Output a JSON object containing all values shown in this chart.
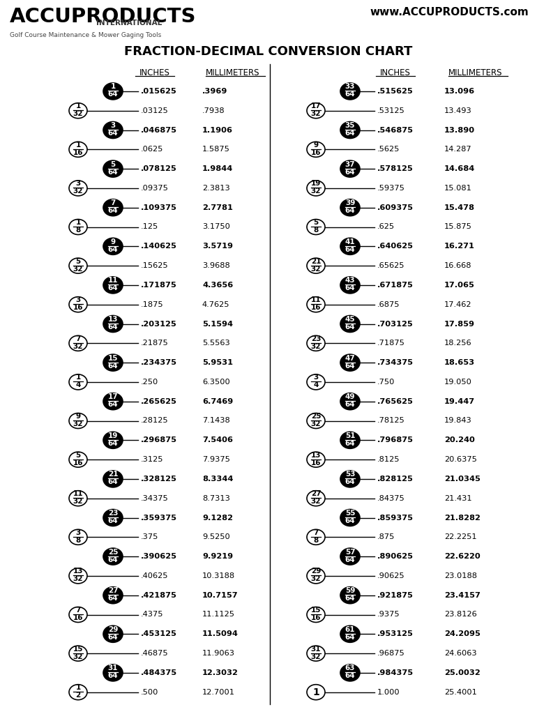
{
  "title": "FRACTION-DECIMAL CONVERSION CHART",
  "logo_main": "ACCUPRODUCTS",
  "logo_sub": "INTERNATIONAL",
  "logo_tagline": "Golf Course Maintenance & Mower Gaging Tools",
  "website": "www.ACCUPRODUCTS.com",
  "left_col": [
    {
      "frac": "1/64",
      "black": true,
      "inches": ".015625",
      "mm": ".3969"
    },
    {
      "frac": "1/32",
      "black": false,
      "inches": ".03125",
      "mm": ".7938"
    },
    {
      "frac": "3/64",
      "black": true,
      "inches": ".046875",
      "mm": "1.1906"
    },
    {
      "frac": "1/16",
      "black": false,
      "inches": ".0625",
      "mm": "1.5875"
    },
    {
      "frac": "5/64",
      "black": true,
      "inches": ".078125",
      "mm": "1.9844"
    },
    {
      "frac": "3/32",
      "black": false,
      "inches": ".09375",
      "mm": "2.3813"
    },
    {
      "frac": "7/64",
      "black": true,
      "inches": ".109375",
      "mm": "2.7781"
    },
    {
      "frac": "1/8",
      "black": false,
      "inches": ".125",
      "mm": "3.1750"
    },
    {
      "frac": "9/64",
      "black": true,
      "inches": ".140625",
      "mm": "3.5719"
    },
    {
      "frac": "5/32",
      "black": false,
      "inches": ".15625",
      "mm": "3.9688"
    },
    {
      "frac": "11/64",
      "black": true,
      "inches": ".171875",
      "mm": "4.3656"
    },
    {
      "frac": "3/16",
      "black": false,
      "inches": ".1875",
      "mm": "4.7625"
    },
    {
      "frac": "13/64",
      "black": true,
      "inches": ".203125",
      "mm": "5.1594"
    },
    {
      "frac": "7/32",
      "black": false,
      "inches": ".21875",
      "mm": "5.5563"
    },
    {
      "frac": "15/64",
      "black": true,
      "inches": ".234375",
      "mm": "5.9531"
    },
    {
      "frac": "1/4",
      "black": false,
      "inches": ".250",
      "mm": "6.3500"
    },
    {
      "frac": "17/64",
      "black": true,
      "inches": ".265625",
      "mm": "6.7469"
    },
    {
      "frac": "9/32",
      "black": false,
      "inches": ".28125",
      "mm": "7.1438"
    },
    {
      "frac": "19/64",
      "black": true,
      "inches": ".296875",
      "mm": "7.5406"
    },
    {
      "frac": "5/16",
      "black": false,
      "inches": ".3125",
      "mm": "7.9375"
    },
    {
      "frac": "21/64",
      "black": true,
      "inches": ".328125",
      "mm": "8.3344"
    },
    {
      "frac": "11/32",
      "black": false,
      "inches": ".34375",
      "mm": "8.7313"
    },
    {
      "frac": "23/64",
      "black": true,
      "inches": ".359375",
      "mm": "9.1282"
    },
    {
      "frac": "3/8",
      "black": false,
      "inches": ".375",
      "mm": "9.5250"
    },
    {
      "frac": "25/64",
      "black": true,
      "inches": ".390625",
      "mm": "9.9219"
    },
    {
      "frac": "13/32",
      "black": false,
      "inches": ".40625",
      "mm": "10.3188"
    },
    {
      "frac": "27/64",
      "black": true,
      "inches": ".421875",
      "mm": "10.7157"
    },
    {
      "frac": "7/16",
      "black": false,
      "inches": ".4375",
      "mm": "11.1125"
    },
    {
      "frac": "29/64",
      "black": true,
      "inches": ".453125",
      "mm": "11.5094"
    },
    {
      "frac": "15/32",
      "black": false,
      "inches": ".46875",
      "mm": "11.9063"
    },
    {
      "frac": "31/64",
      "black": true,
      "inches": ".484375",
      "mm": "12.3032"
    },
    {
      "frac": "1/2",
      "black": false,
      "inches": ".500",
      "mm": "12.7001"
    }
  ],
  "right_col": [
    {
      "frac": "33/64",
      "black": true,
      "inches": ".515625",
      "mm": "13.096"
    },
    {
      "frac": "17/32",
      "black": false,
      "inches": ".53125",
      "mm": "13.493"
    },
    {
      "frac": "35/64",
      "black": true,
      "inches": ".546875",
      "mm": "13.890"
    },
    {
      "frac": "9/16",
      "black": false,
      "inches": ".5625",
      "mm": "14.287"
    },
    {
      "frac": "37/64",
      "black": true,
      "inches": ".578125",
      "mm": "14.684"
    },
    {
      "frac": "19/32",
      "black": false,
      "inches": ".59375",
      "mm": "15.081"
    },
    {
      "frac": "39/64",
      "black": true,
      "inches": ".609375",
      "mm": "15.478"
    },
    {
      "frac": "5/8",
      "black": false,
      "inches": ".625",
      "mm": "15.875"
    },
    {
      "frac": "41/64",
      "black": true,
      "inches": ".640625",
      "mm": "16.271"
    },
    {
      "frac": "21/32",
      "black": false,
      "inches": ".65625",
      "mm": "16.668"
    },
    {
      "frac": "43/64",
      "black": true,
      "inches": ".671875",
      "mm": "17.065"
    },
    {
      "frac": "11/16",
      "black": false,
      "inches": ".6875",
      "mm": "17.462"
    },
    {
      "frac": "45/64",
      "black": true,
      "inches": ".703125",
      "mm": "17.859"
    },
    {
      "frac": "23/32",
      "black": false,
      "inches": ".71875",
      "mm": "18.256"
    },
    {
      "frac": "47/64",
      "black": true,
      "inches": ".734375",
      "mm": "18.653"
    },
    {
      "frac": "3/4",
      "black": false,
      "inches": ".750",
      "mm": "19.050"
    },
    {
      "frac": "49/64",
      "black": true,
      "inches": ".765625",
      "mm": "19.447"
    },
    {
      "frac": "25/32",
      "black": false,
      "inches": ".78125",
      "mm": "19.843"
    },
    {
      "frac": "51/64",
      "black": true,
      "inches": ".796875",
      "mm": "20.240"
    },
    {
      "frac": "13/16",
      "black": false,
      "inches": ".8125",
      "mm": "20.6375"
    },
    {
      "frac": "53/64",
      "black": true,
      "inches": ".828125",
      "mm": "21.0345"
    },
    {
      "frac": "27/32",
      "black": false,
      "inches": ".84375",
      "mm": "21.431"
    },
    {
      "frac": "55/64",
      "black": true,
      "inches": ".859375",
      "mm": "21.8282"
    },
    {
      "frac": "7/8",
      "black": false,
      "inches": ".875",
      "mm": "22.2251"
    },
    {
      "frac": "57/64",
      "black": true,
      "inches": ".890625",
      "mm": "22.6220"
    },
    {
      "frac": "29/32",
      "black": false,
      "inches": ".90625",
      "mm": "23.0188"
    },
    {
      "frac": "59/64",
      "black": true,
      "inches": ".921875",
      "mm": "23.4157"
    },
    {
      "frac": "15/16",
      "black": false,
      "inches": ".9375",
      "mm": "23.8126"
    },
    {
      "frac": "61/64",
      "black": true,
      "inches": ".953125",
      "mm": "24.2095"
    },
    {
      "frac": "31/32",
      "black": false,
      "inches": ".96875",
      "mm": "24.6063"
    },
    {
      "frac": "63/64",
      "black": true,
      "inches": ".984375",
      "mm": "25.0032"
    },
    {
      "frac": "1",
      "black": false,
      "inches": "1.000",
      "mm": "25.4001"
    }
  ]
}
